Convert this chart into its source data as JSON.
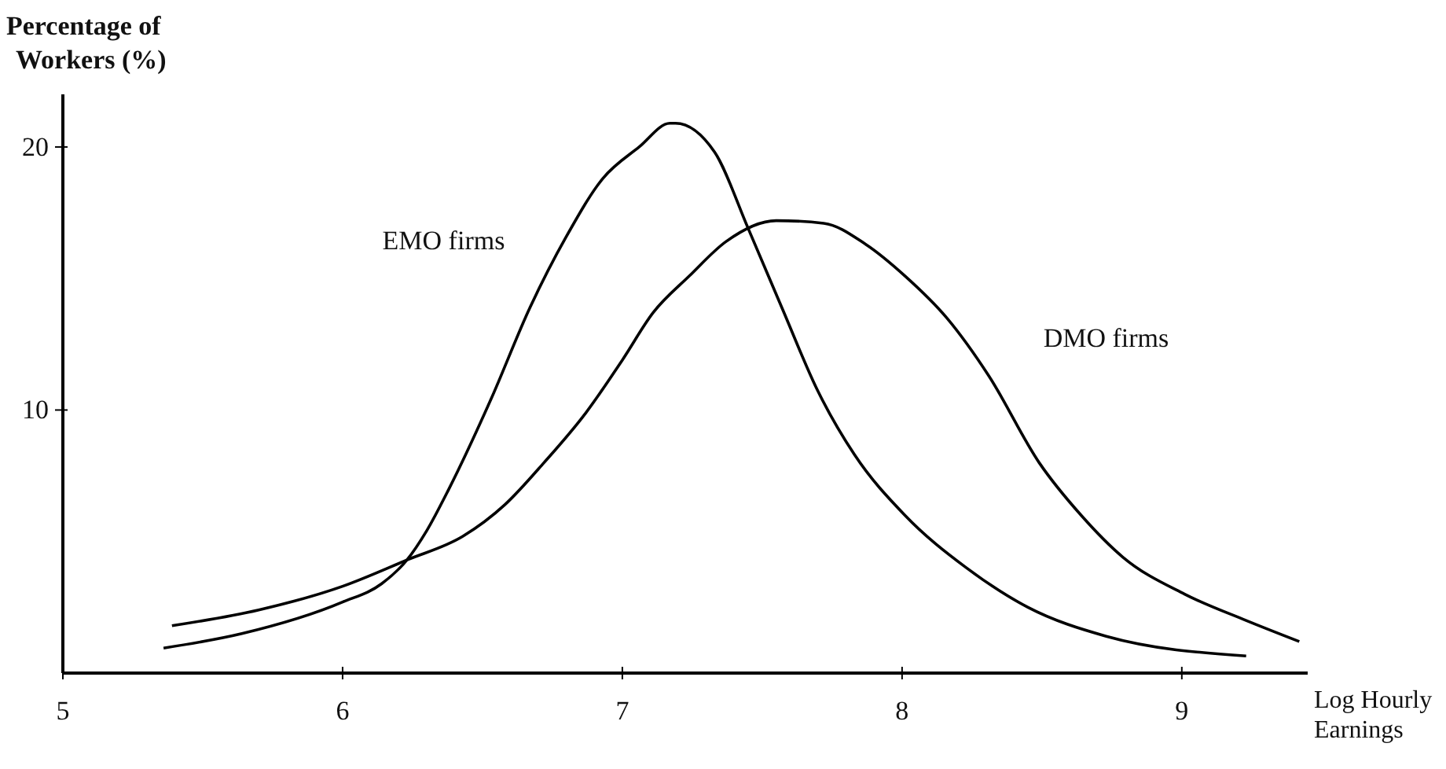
{
  "chart_data": {
    "type": "line",
    "xlabel": "Log Hourly Earnings",
    "ylabel": "Percentage of Workers (%)",
    "xlim": [
      5,
      9.45
    ],
    "ylim": [
      0,
      22
    ],
    "xticks": [
      5,
      6,
      7,
      8,
      9
    ],
    "yticks": [
      10,
      20
    ],
    "grid": false,
    "legend": false,
    "marker": "none",
    "line_style": "solid",
    "series": [
      {
        "name": "EMO firms",
        "color": "#000000",
        "x": [
          5.36,
          5.64,
          6.0,
          6.14,
          6.23,
          6.3,
          6.38,
          6.53,
          6.67,
          6.8,
          6.93,
          7.06,
          7.17,
          7.19,
          7.33,
          7.45,
          7.57,
          7.7,
          7.83,
          8.01,
          8.23,
          8.45,
          8.73,
          9.23
        ],
        "values": [
          0.95,
          1.5,
          2.7,
          3.4,
          4.3,
          5.4,
          7.0,
          10.4,
          13.9,
          16.6,
          18.8,
          20.0,
          20.9,
          20.9,
          19.8,
          16.9,
          13.9,
          10.7,
          8.3,
          6.0,
          4.0,
          2.5,
          1.4,
          0.65
        ]
      },
      {
        "name": "DMO firms",
        "color": "#000000",
        "x": [
          5.39,
          5.7,
          6.0,
          6.23,
          6.43,
          6.58,
          6.72,
          6.87,
          7.0,
          7.11,
          7.24,
          7.37,
          7.55,
          7.72,
          7.87,
          8.01,
          8.16,
          8.31,
          8.49,
          8.64,
          8.79,
          9.01,
          9.23,
          9.42
        ],
        "values": [
          1.8,
          2.4,
          3.3,
          4.3,
          5.2,
          6.4,
          8.0,
          9.9,
          11.9,
          13.7,
          15.1,
          16.4,
          17.2,
          17.1,
          16.3,
          15.1,
          13.5,
          11.3,
          8.0,
          6.0,
          4.4,
          3.0,
          2.0,
          1.2
        ]
      }
    ]
  }
}
